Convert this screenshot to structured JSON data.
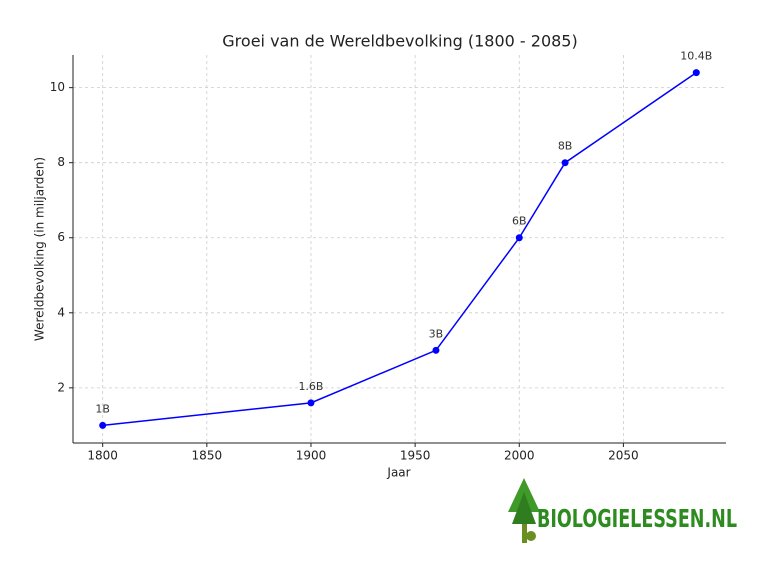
{
  "chart_data": {
    "type": "line",
    "title": "Groei van de Wereldbevolking (1800 - 2085)",
    "x_label": "Jaar",
    "y_label": "Wereldbevolking (in miljarden)",
    "x": [
      1800,
      1900,
      1960,
      2000,
      2022,
      2085
    ],
    "values": [
      1,
      1.6,
      3,
      6,
      8,
      10.4
    ],
    "value_labels": [
      "1B",
      "1.6B",
      "3B",
      "6B",
      "8B",
      "10.4B"
    ],
    "color": "#0000ff",
    "xlim": [
      1785.75,
      2099.25
    ],
    "xticks": [
      1800,
      1850,
      1900,
      1950,
      2000,
      2050
    ],
    "ylim": [
      0.53,
      10.87
    ],
    "yticks": [
      2,
      4,
      6,
      8,
      10
    ],
    "grid": true
  },
  "logo": "BIOLOGIELESSEN.NL"
}
